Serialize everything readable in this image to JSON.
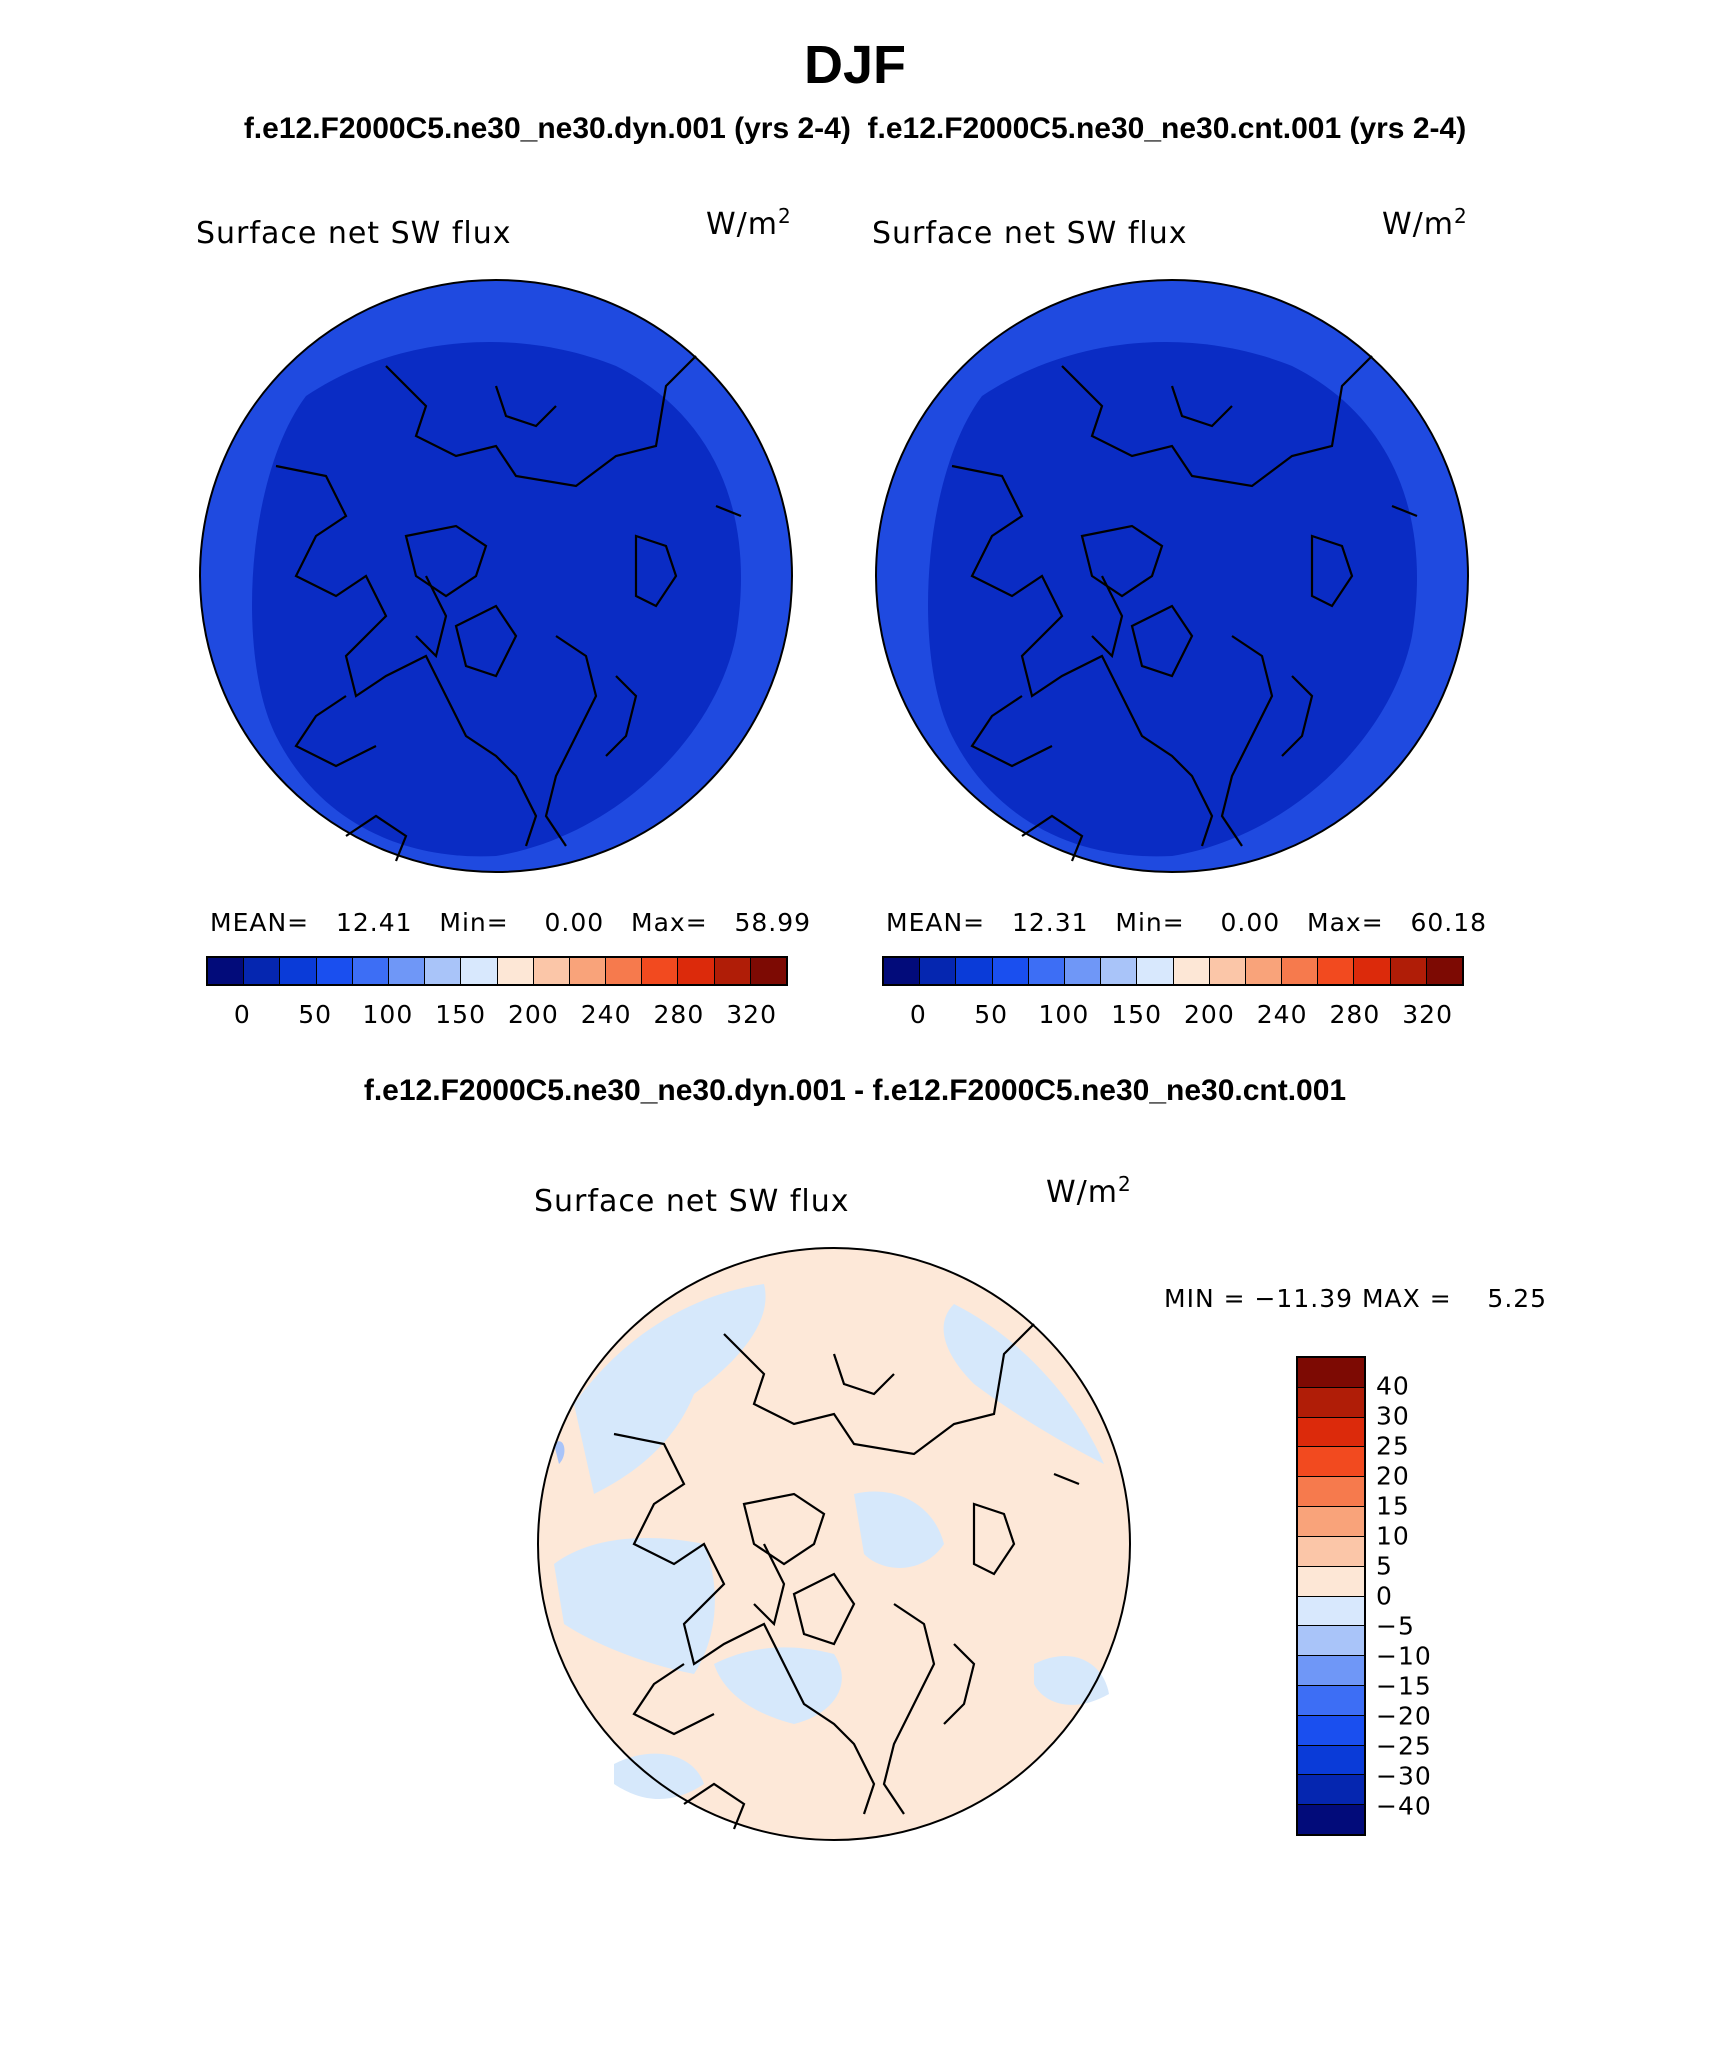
{
  "title": "DJF",
  "case_header": "f.e12.F2000C5.ne30_ne30.dyn.001 (yrs 2-4)  f.e12.F2000C5.ne30_ne30.cnt.001 (yrs 2-4)",
  "diff_header": "f.e12.F2000C5.ne30_ne30.dyn.001 - f.e12.F2000C5.ne30_ne30.cnt.001",
  "panels": [
    {
      "variable": "Surface net SW flux",
      "units_base": "W/m",
      "units_exp": "2",
      "stats": {
        "mean_label": "MEAN=",
        "mean": "12.41",
        "min_label": "Min=",
        "min": "0.00",
        "max_label": "Max=",
        "max": "58.99"
      },
      "fill_color": "#0a2cc4",
      "outer_color": "#1f4ae0"
    },
    {
      "variable": "Surface net SW flux",
      "units_base": "W/m",
      "units_exp": "2",
      "stats": {
        "mean_label": "MEAN=",
        "mean": "12.31",
        "min_label": "Min=",
        "min": "0.00",
        "max_label": "Max=",
        "max": "60.18"
      },
      "fill_color": "#0a2cc4",
      "outer_color": "#1f4ae0"
    },
    {
      "variable": "Surface net SW flux",
      "units_base": "W/m",
      "units_exp": "2",
      "stats_text": "MIN = −11.39 MAX =    5.25",
      "fill_color": "#fde8d8",
      "neg_color": "#d6e8fb"
    }
  ],
  "abs_colorbar": {
    "colors": [
      "#020b7a",
      "#0526b0",
      "#0a3bd8",
      "#1a4fef",
      "#3d6ef5",
      "#6f97f7",
      "#a9c4f9",
      "#d8e8fd",
      "#fde7d6",
      "#fbc6a8",
      "#f9a37a",
      "#f67a4d",
      "#f24a1f",
      "#dc2a0b",
      "#b01d07",
      "#7d0a03"
    ],
    "ticks": [
      "0",
      "50",
      "100",
      "150",
      "200",
      "240",
      "280",
      "320"
    ]
  },
  "diff_colorbar": {
    "colors_top_to_bottom": [
      "#7d0a03",
      "#b01d07",
      "#dc2a0b",
      "#f24a1f",
      "#f67a4d",
      "#f9a37a",
      "#fbc6a8",
      "#fde7d6",
      "#d8e8fd",
      "#a9c4f9",
      "#6f97f7",
      "#3d6ef5",
      "#1a4fef",
      "#0a3bd8",
      "#0526b0",
      "#020b7a"
    ],
    "ticks": [
      "40",
      "30",
      "25",
      "20",
      "15",
      "10",
      "5",
      "0",
      "−5",
      "−10",
      "−15",
      "−20",
      "−25",
      "−30",
      "−40"
    ]
  }
}
